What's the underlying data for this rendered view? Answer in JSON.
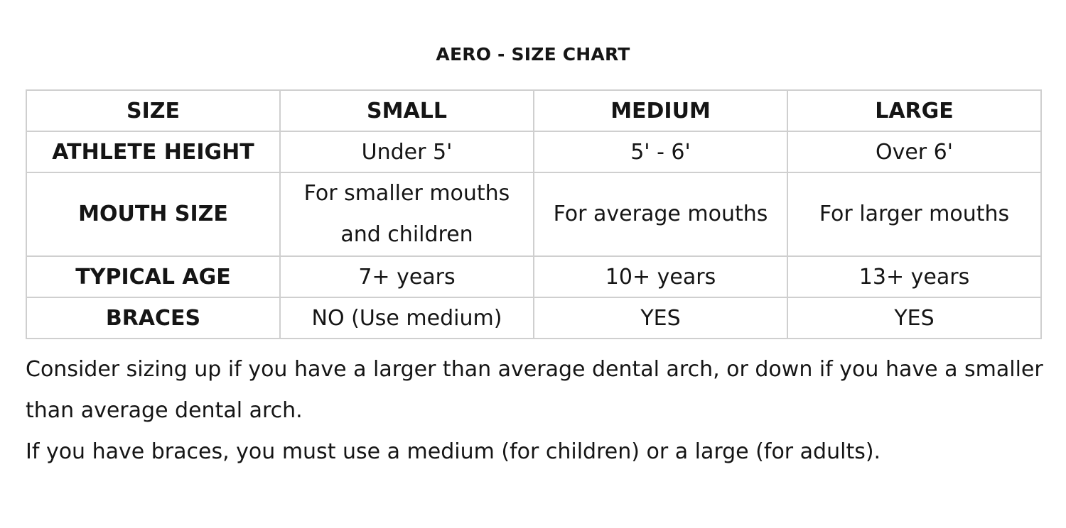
{
  "title": "AERO - SIZE CHART",
  "table": {
    "header": [
      "SIZE",
      "SMALL",
      "MEDIUM",
      "LARGE"
    ],
    "rows": [
      {
        "label": "ATHLETE HEIGHT",
        "cells": [
          "Under 5'",
          "5' - 6'",
          "Over 6'"
        ]
      },
      {
        "label": "MOUTH SIZE",
        "cells": [
          [
            "For smaller mouths",
            "and children"
          ],
          "For average mouths",
          "For larger mouths"
        ]
      },
      {
        "label": "TYPICAL AGE",
        "cells": [
          "7+ years",
          "10+ years",
          "13+ years"
        ]
      },
      {
        "label": "BRACES",
        "cells": [
          "NO (Use medium)",
          "YES",
          "YES"
        ]
      }
    ]
  },
  "notes": [
    "Consider sizing up if you have a larger than average dental arch, or down if you have a smaller than average dental arch.",
    "If you have braces, you must use a medium (for children) or a large (for adults)."
  ]
}
